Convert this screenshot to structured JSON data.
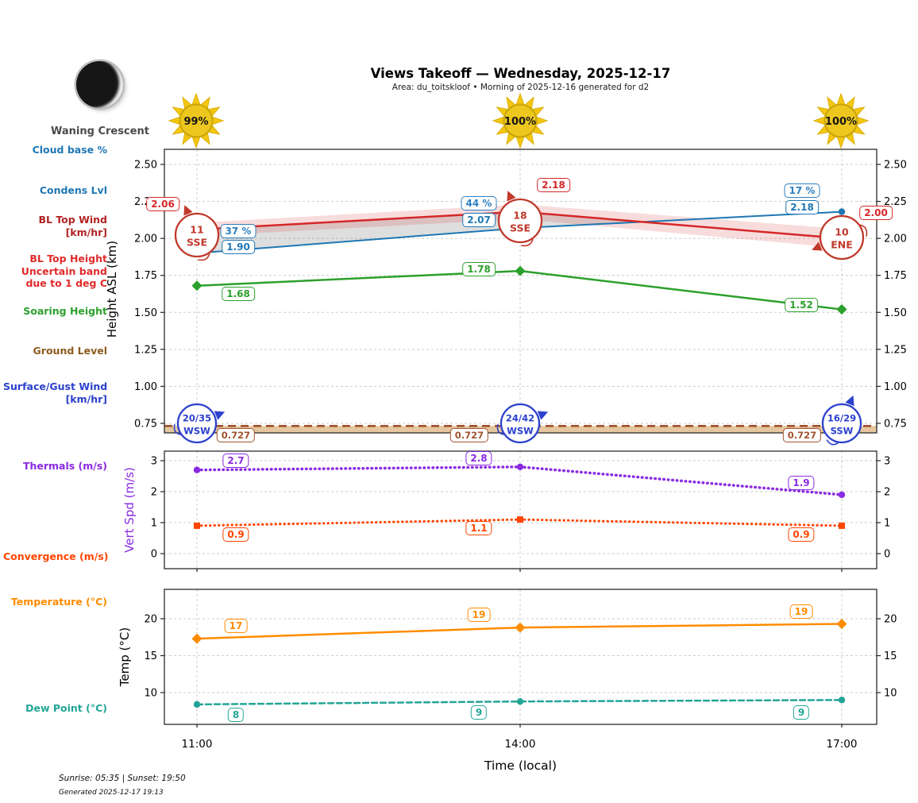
{
  "header": {
    "title": "Views Takeoff — Wednesday, 2025-12-17",
    "subtitle": "Area: du_toitskloof • Morning of 2025-12-16 generated for d2"
  },
  "moon": {
    "phase_label": "Waning Crescent",
    "phase_icon": "waning-crescent"
  },
  "suns": [
    {
      "time": "11:00",
      "percent": "99%"
    },
    {
      "time": "14:00",
      "percent": "100%"
    },
    {
      "time": "17:00",
      "percent": "100%"
    }
  ],
  "left_labels": [
    {
      "id": "cloud-base",
      "color": "#1f77b4",
      "lines": [
        "Cloud base %"
      ]
    },
    {
      "id": "condens-lvl",
      "color": "#1f77b4",
      "lines": [
        "Condens Lvl"
      ]
    },
    {
      "id": "bl-top-wind",
      "color": "#b22222",
      "lines": [
        "BL Top Wind",
        "[km/hr]"
      ]
    },
    {
      "id": "bl-top-height",
      "color": "#e02b2b",
      "lines": [
        "BL Top Height",
        "Uncertain band",
        "due to 1 deg C"
      ]
    },
    {
      "id": "soaring-height",
      "color": "#2ca02c",
      "lines": [
        "Soaring Height"
      ]
    },
    {
      "id": "ground-level",
      "color": "#8c5a1e",
      "lines": [
        "Ground Level"
      ]
    },
    {
      "id": "surface-gust-wind",
      "color": "#2c41cc",
      "lines": [
        "Surface/Gust Wind",
        "[km/hr]"
      ]
    },
    {
      "id": "thermals",
      "color": "#8a2be2",
      "lines": [
        "Thermals (m/s)"
      ]
    },
    {
      "id": "convergence",
      "color": "#ff4500",
      "lines": [
        "Convergence (m/s)"
      ]
    },
    {
      "id": "temperature",
      "color": "#ff8c00",
      "lines": [
        "Temperature (°C)"
      ]
    },
    {
      "id": "dew-point",
      "color": "#23a596",
      "lines": [
        "Dew Point (°C)"
      ]
    }
  ],
  "axes": {
    "xlabel": "Time (local)",
    "x_ticks": [
      "11:00",
      "14:00",
      "17:00"
    ]
  },
  "chart_data": [
    {
      "type": "line",
      "panel": "height",
      "ylabel": "Height ASL (km)",
      "x": [
        "11:00",
        "14:00",
        "17:00"
      ],
      "ylim": [
        0.69,
        2.63
      ],
      "yticks": [
        "2.50",
        "2.25",
        "2.00",
        "1.75",
        "1.50",
        "1.25",
        "1.00",
        "0.75"
      ],
      "grid": true,
      "series": [
        {
          "key": "cloud_pct",
          "name": "Cloud base %",
          "color": "#2e7fbe",
          "labels": [
            "37 %",
            "44 %",
            "17 %"
          ]
        },
        {
          "key": "condens",
          "name": "Condens Lvl",
          "color": "#1f77b4",
          "style": "solid",
          "marker": "circle",
          "values": [
            1.9,
            2.07,
            2.18
          ],
          "labels": [
            "1.90",
            "2.07",
            "2.18"
          ]
        },
        {
          "key": "bl_top",
          "name": "BL Top Height",
          "color": "#d62728",
          "style": "solid",
          "values": [
            2.06,
            2.18,
            2.0
          ],
          "labels": [
            "2.06",
            "2.18",
            "2.00"
          ],
          "band": [
            0.045,
            0.05,
            0.065
          ],
          "band_color": "#d62728"
        },
        {
          "key": "soaring",
          "name": "Soaring Height",
          "color": "#2ca02c",
          "style": "solid",
          "marker": "diamond",
          "values": [
            1.68,
            1.78,
            1.52
          ],
          "labels": [
            "1.68",
            "1.78",
            "1.52"
          ]
        },
        {
          "key": "ground",
          "name": "Ground Level",
          "color": "#a0522d",
          "style": "dashed",
          "values": [
            0.727,
            0.727,
            0.727
          ],
          "labels": [
            "0.727",
            "0.727",
            "0.727"
          ],
          "fill_color": "#deb887"
        }
      ],
      "wind_bl_top": [
        {
          "speed": "11",
          "dir": "SSE"
        },
        {
          "speed": "18",
          "dir": "SSE"
        },
        {
          "speed": "10",
          "dir": "ENE"
        }
      ],
      "wind_surface": [
        {
          "speed": "20/35",
          "dir": "WSW"
        },
        {
          "speed": "24/42",
          "dir": "WSW"
        },
        {
          "speed": "16/29",
          "dir": "SSW"
        }
      ]
    },
    {
      "type": "line",
      "panel": "vert-spd",
      "ylabel": "Vert Spd (m/s)",
      "ylabel_color": "#8a2be2",
      "x": [
        "11:00",
        "14:00",
        "17:00"
      ],
      "ylim": [
        -0.5,
        3.3
      ],
      "yticks": [
        "3",
        "2",
        "1",
        "0"
      ],
      "grid": true,
      "series": [
        {
          "key": "thermals",
          "name": "Thermals (m/s)",
          "color": "#8a2be2",
          "style": "dotted",
          "marker": "circle",
          "values": [
            2.7,
            2.8,
            1.9
          ],
          "labels": [
            "2.7",
            "2.8",
            "1.9"
          ]
        },
        {
          "key": "convergence",
          "name": "Convergence (m/s)",
          "color": "#ff4500",
          "style": "dotted",
          "marker": "square",
          "values": [
            0.9,
            1.1,
            0.9
          ],
          "labels": [
            "0.9",
            "1.1",
            "0.9"
          ]
        }
      ]
    },
    {
      "type": "line",
      "panel": "temp",
      "ylabel": "Temp (°C)",
      "x": [
        "11:00",
        "14:00",
        "17:00"
      ],
      "ylim": [
        5.6,
        24.1
      ],
      "yticks": [
        "20",
        "15",
        "10"
      ],
      "grid": true,
      "series": [
        {
          "key": "temperature",
          "name": "Temperature (°C)",
          "color": "#ff8c00",
          "style": "solid",
          "marker": "diamond",
          "values": [
            17.3,
            18.8,
            19.3
          ],
          "labels": [
            "17",
            "19",
            "19"
          ]
        },
        {
          "key": "dew_point",
          "name": "Dew Point (°C)",
          "color": "#23a596",
          "style": "dashed",
          "marker": "circle",
          "values": [
            8.4,
            8.8,
            9.0
          ],
          "labels": [
            "8",
            "9",
            "9"
          ]
        }
      ]
    }
  ],
  "footer": {
    "sun_times": "Sunrise: 05:35 | Sunset: 19:50",
    "generated": "Generated 2025-12-17 19:13"
  }
}
